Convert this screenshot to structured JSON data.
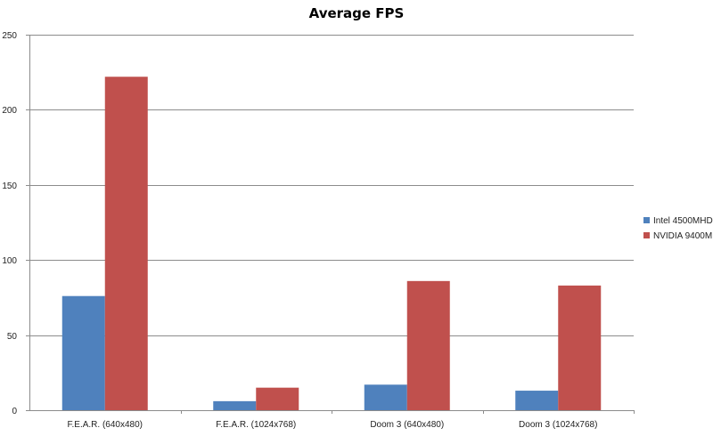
{
  "chart_data": {
    "type": "bar",
    "title": "Average FPS",
    "xlabel": "",
    "ylabel": "",
    "categories": [
      "F.E.A.R. (640x480)",
      "F.E.A.R. (1024x768)",
      "Doom 3 (640x480)",
      "Doom 3 (1024x768)"
    ],
    "series": [
      {
        "name": "Intel 4500MHD",
        "values": [
          76,
          6,
          17,
          13
        ],
        "color": "#4F81BD"
      },
      {
        "name": "NVIDIA 9400M",
        "values": [
          222,
          15,
          86,
          83
        ],
        "color": "#C0504D"
      }
    ],
    "ylim": [
      0,
      250
    ],
    "yticks": [
      0,
      50,
      100,
      150,
      200,
      250
    ],
    "grid": true,
    "legend_position": "right"
  }
}
